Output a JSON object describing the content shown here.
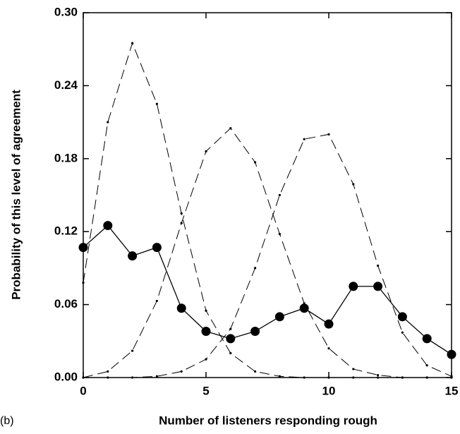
{
  "chart_data": {
    "type": "line",
    "panel_label": "(b)",
    "x_label": "Number of listeners responding rough",
    "y_label": "Probability of this level of agreement",
    "x": [
      0,
      1,
      2,
      3,
      4,
      5,
      6,
      7,
      8,
      9,
      10,
      11,
      12,
      13,
      14,
      15
    ],
    "xlim": [
      0,
      15
    ],
    "xticks": [
      0,
      5,
      10,
      15
    ],
    "ylim": [
      0,
      0.3
    ],
    "yticks": [
      {
        "value": 0,
        "label": "0.00"
      },
      0.06,
      0.12,
      0.18,
      0.24,
      {
        "value": 0.3,
        "label": "0.30"
      }
    ],
    "series": [
      {
        "style": "solid",
        "color": "#000000",
        "values": [
          0.107,
          0.125,
          0.1,
          0.107,
          0.057,
          0.038,
          0.032,
          0.038,
          0.05,
          0.057,
          0.044,
          0.075,
          0.075,
          0.05,
          0.032,
          0.019
        ]
      },
      {
        "style": "dashed",
        "color": "#000000",
        "values": [
          0.078,
          0.21,
          0.275,
          0.225,
          0.135,
          0.055,
          0.02,
          0.005,
          0.001,
          0,
          0,
          0,
          0,
          0,
          0,
          0
        ]
      },
      {
        "style": "dashed",
        "color": "#000000",
        "values": [
          0,
          0.005,
          0.022,
          0.063,
          0.127,
          0.186,
          0.205,
          0.177,
          0.118,
          0.061,
          0.024,
          0.007,
          0.002,
          0,
          0,
          0
        ]
      },
      {
        "style": "dashed",
        "color": "#000000",
        "values": [
          0,
          0,
          0,
          0.001,
          0.005,
          0.015,
          0.04,
          0.09,
          0.15,
          0.196,
          0.2,
          0.159,
          0.092,
          0.037,
          0.01,
          0.001
        ]
      }
    ]
  }
}
